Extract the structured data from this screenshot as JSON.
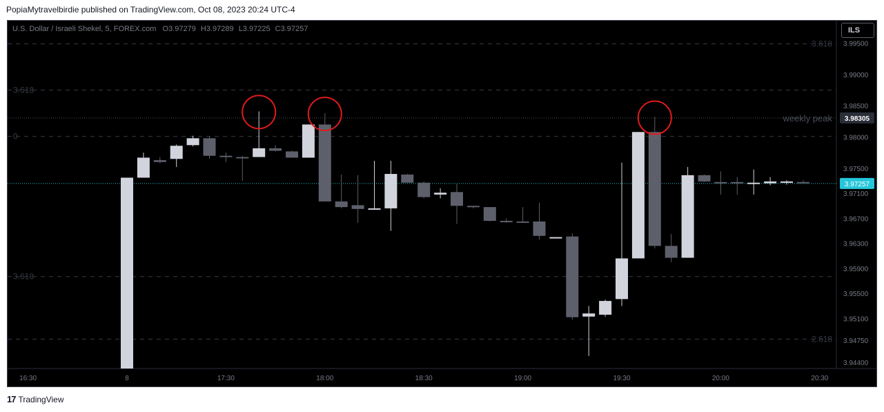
{
  "caption": "PopiaMytravelbirdie published on TradingView.com, Oct 08, 2023 20:24 UTC-4",
  "footer": {
    "logo": "17",
    "brand": "TradingView"
  },
  "currency_button": "ILS",
  "colors": {
    "background": "#000000",
    "up": "#d1d4dc",
    "down": "#5d606b",
    "last_price": "#26c6da",
    "annotation": "#e01b1b"
  },
  "chart_data": {
    "type": "candlestick",
    "header": {
      "symbol": "U.S. Dollar / Israeli Shekel, 5, FOREX.com",
      "open": "O3.97279",
      "high": "H3.97289",
      "low": "L3.97225",
      "close": "C3.97257"
    },
    "y_axis": {
      "min": 3.943,
      "max": 3.9955,
      "ticks": [
        "3.99500",
        "3.99000",
        "3.98500",
        "3.98000",
        "3.97500",
        "3.97100",
        "3.96700",
        "3.96300",
        "3.95900",
        "3.95500",
        "3.95100",
        "3.94750",
        "3.94400"
      ],
      "tick_values": [
        3.995,
        3.99,
        3.985,
        3.98,
        3.975,
        3.971,
        3.967,
        3.963,
        3.959,
        3.955,
        3.951,
        3.9475,
        3.944
      ]
    },
    "x_axis": {
      "labels": [
        "16:30",
        "8",
        "17:30",
        "18:00",
        "18:30",
        "19:00",
        "19:30",
        "20:00",
        "20:30"
      ],
      "label_slots": [
        -6,
        0,
        6,
        12,
        18,
        24,
        30,
        36,
        42
      ]
    },
    "fib_levels": [
      {
        "value": 3.9949,
        "label": "3.618",
        "label_side": "right"
      },
      {
        "value": 3.9875,
        "label": "3.618",
        "label_side": "left"
      },
      {
        "value": 3.9801,
        "label": "0",
        "label_side": "left"
      },
      {
        "value": 3.9577,
        "label": "3.618",
        "label_side": "left"
      },
      {
        "value": 3.9477,
        "label": "2.618",
        "label_side": "right"
      }
    ],
    "weekly_peak": {
      "value": 3.98305,
      "label": "weekly peak",
      "price_label": "3.98305"
    },
    "last_price": {
      "value": 3.97257,
      "label": "3.97257"
    },
    "candles": [
      {
        "o": 3.943,
        "h": 3.9735,
        "l": 3.943,
        "c": 3.9735
      },
      {
        "o": 3.9735,
        "h": 3.9775,
        "l": 3.9735,
        "c": 3.9767
      },
      {
        "o": 3.9763,
        "h": 3.9768,
        "l": 3.9758,
        "c": 3.976
      },
      {
        "o": 3.9765,
        "h": 3.9788,
        "l": 3.9752,
        "c": 3.9786
      },
      {
        "o": 3.9787,
        "h": 3.9802,
        "l": 3.9785,
        "c": 3.9798
      },
      {
        "o": 3.9798,
        "h": 3.9801,
        "l": 3.9765,
        "c": 3.977
      },
      {
        "o": 3.977,
        "h": 3.9775,
        "l": 3.976,
        "c": 3.9768
      },
      {
        "o": 3.9768,
        "h": 3.977,
        "l": 3.973,
        "c": 3.9767
      },
      {
        "o": 3.9768,
        "h": 3.9841,
        "l": 3.9768,
        "c": 3.9782
      },
      {
        "o": 3.9782,
        "h": 3.9787,
        "l": 3.9777,
        "c": 3.9778
      },
      {
        "o": 3.9777,
        "h": 3.9778,
        "l": 3.9767,
        "c": 3.9767
      },
      {
        "o": 3.9767,
        "h": 3.982,
        "l": 3.9767,
        "c": 3.982
      },
      {
        "o": 3.982,
        "h": 3.9838,
        "l": 3.9697,
        "c": 3.9697
      },
      {
        "o": 3.9697,
        "h": 3.974,
        "l": 3.9686,
        "c": 3.9688
      },
      {
        "o": 3.9691,
        "h": 3.9739,
        "l": 3.9663,
        "c": 3.9685
      },
      {
        "o": 3.9686,
        "h": 3.9762,
        "l": 3.9685,
        "c": 3.9686
      },
      {
        "o": 3.9686,
        "h": 3.9762,
        "l": 3.965,
        "c": 3.9741
      },
      {
        "o": 3.974,
        "h": 3.9741,
        "l": 3.9727,
        "c": 3.9727
      },
      {
        "o": 3.9727,
        "h": 3.9729,
        "l": 3.9702,
        "c": 3.9704
      },
      {
        "o": 3.9708,
        "h": 3.9718,
        "l": 3.9702,
        "c": 3.9711
      },
      {
        "o": 3.9712,
        "h": 3.9725,
        "l": 3.9661,
        "c": 3.969
      },
      {
        "o": 3.969,
        "h": 3.969,
        "l": 3.9686,
        "c": 3.9688
      },
      {
        "o": 3.9688,
        "h": 3.9688,
        "l": 3.9665,
        "c": 3.9666
      },
      {
        "o": 3.9666,
        "h": 3.967,
        "l": 3.9663,
        "c": 3.9665
      },
      {
        "o": 3.9665,
        "h": 3.9688,
        "l": 3.9663,
        "c": 3.9664
      },
      {
        "o": 3.9665,
        "h": 3.9695,
        "l": 3.9636,
        "c": 3.9642
      },
      {
        "o": 3.964,
        "h": 3.964,
        "l": 3.964,
        "c": 3.964
      },
      {
        "o": 3.9641,
        "h": 3.9646,
        "l": 3.9508,
        "c": 3.9512
      },
      {
        "o": 3.9513,
        "h": 3.953,
        "l": 3.945,
        "c": 3.9518
      },
      {
        "o": 3.9516,
        "h": 3.954,
        "l": 3.9513,
        "c": 3.9538
      },
      {
        "o": 3.9541,
        "h": 3.9759,
        "l": 3.953,
        "c": 3.9606
      },
      {
        "o": 3.9606,
        "h": 3.9808,
        "l": 3.9606,
        "c": 3.9808
      },
      {
        "o": 3.9808,
        "h": 3.9832,
        "l": 3.9622,
        "c": 3.9626
      },
      {
        "o": 3.9626,
        "h": 3.9645,
        "l": 3.96,
        "c": 3.9607
      },
      {
        "o": 3.9607,
        "h": 3.9752,
        "l": 3.9607,
        "c": 3.9739
      },
      {
        "o": 3.9739,
        "h": 3.974,
        "l": 3.9728,
        "c": 3.9729
      },
      {
        "o": 3.9728,
        "h": 3.9745,
        "l": 3.9708,
        "c": 3.9726
      },
      {
        "o": 3.9728,
        "h": 3.9736,
        "l": 3.9708,
        "c": 3.9726
      },
      {
        "o": 3.9726,
        "h": 3.9748,
        "l": 3.9708,
        "c": 3.9727
      },
      {
        "o": 3.9726,
        "h": 3.9736,
        "l": 3.9723,
        "c": 3.9729
      },
      {
        "o": 3.9728,
        "h": 3.9731,
        "l": 3.9724,
        "c": 3.9729
      },
      {
        "o": 3.9728,
        "h": 3.9731,
        "l": 3.9726,
        "c": 3.9726
      }
    ],
    "circled_candles": [
      8,
      12,
      32
    ]
  }
}
